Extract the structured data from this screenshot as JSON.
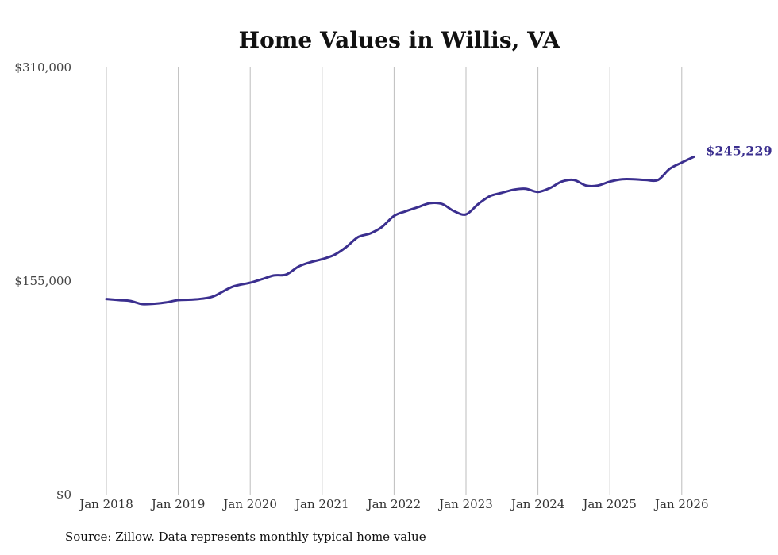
{
  "chart_data": {
    "type": "line",
    "title": "Home Values in Willis, VA",
    "xlabel": "",
    "ylabel": "",
    "ylim": [
      0,
      310000
    ],
    "yticks": [
      0,
      155000,
      310000
    ],
    "ytick_labels": [
      "$0",
      "$155,000",
      "$310,000"
    ],
    "xlim": [
      2018.0,
      2026.25
    ],
    "xticks": [
      2018,
      2019,
      2020,
      2021,
      2022,
      2023,
      2024,
      2025,
      2026
    ],
    "xtick_labels": [
      "Jan 2018",
      "Jan 2019",
      "Jan 2020",
      "Jan 2021",
      "Jan 2022",
      "Jan 2023",
      "Jan 2024",
      "Jan 2025",
      "Jan 2026"
    ],
    "grid": "vertical",
    "series": [
      {
        "name": "Typical home value",
        "color": "#3b2f8f",
        "end_label": "$245,229",
        "points": [
          [
            2018.0,
            142000
          ],
          [
            2018.17,
            141200
          ],
          [
            2018.33,
            140600
          ],
          [
            2018.5,
            138300
          ],
          [
            2018.67,
            138600
          ],
          [
            2018.83,
            139500
          ],
          [
            2019.0,
            141200
          ],
          [
            2019.17,
            141500
          ],
          [
            2019.33,
            142200
          ],
          [
            2019.5,
            144100
          ],
          [
            2019.75,
            150800
          ],
          [
            2020.0,
            153800
          ],
          [
            2020.17,
            156500
          ],
          [
            2020.33,
            159100
          ],
          [
            2020.5,
            159700
          ],
          [
            2020.67,
            165500
          ],
          [
            2020.83,
            168600
          ],
          [
            2021.0,
            170900
          ],
          [
            2021.17,
            174000
          ],
          [
            2021.33,
            179500
          ],
          [
            2021.5,
            186900
          ],
          [
            2021.67,
            189600
          ],
          [
            2021.83,
            194200
          ],
          [
            2022.0,
            202300
          ],
          [
            2022.17,
            205800
          ],
          [
            2022.33,
            208600
          ],
          [
            2022.5,
            211500
          ],
          [
            2022.67,
            210900
          ],
          [
            2022.83,
            205800
          ],
          [
            2023.0,
            203400
          ],
          [
            2023.17,
            210900
          ],
          [
            2023.33,
            216600
          ],
          [
            2023.5,
            219100
          ],
          [
            2023.67,
            221400
          ],
          [
            2023.83,
            222000
          ],
          [
            2024.0,
            219700
          ],
          [
            2024.17,
            222600
          ],
          [
            2024.33,
            227200
          ],
          [
            2024.5,
            228400
          ],
          [
            2024.67,
            224300
          ],
          [
            2024.83,
            224300
          ],
          [
            2025.0,
            227200
          ],
          [
            2025.17,
            228900
          ],
          [
            2025.33,
            228900
          ],
          [
            2025.5,
            228400
          ],
          [
            2025.67,
            228400
          ],
          [
            2025.83,
            236400
          ],
          [
            2026.0,
            241000
          ],
          [
            2026.17,
            245229
          ]
        ]
      }
    ]
  },
  "source_note": "Source: Zillow. Data represents monthly typical home value"
}
